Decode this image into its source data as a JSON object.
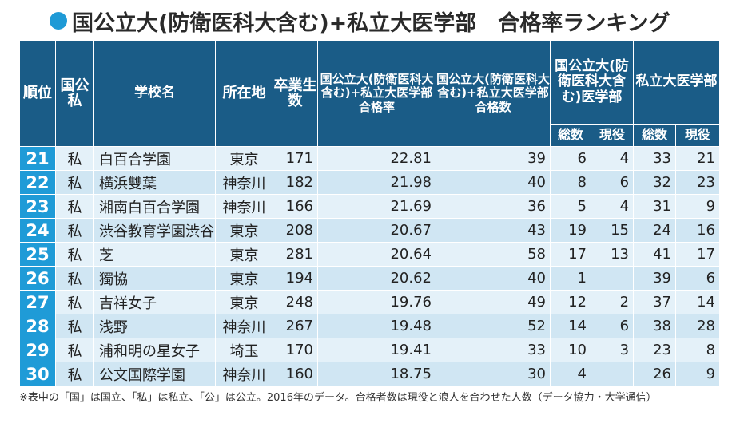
{
  "title": "国公立大(防衛医科大含む)+私立大医学部　合格率ランキング",
  "headers": {
    "rank": "順位",
    "type": "国公私",
    "school": "学校名",
    "location": "所在地",
    "graduates": "卒業生数",
    "rate": "国公立大(防衛医科大含む)+私立大医学部合格率",
    "passes": "国公立大(防衛医科大含む)+私立大医学部合格数",
    "national": "国公立大(防衛医科大含む)医学部",
    "private": "私立大医学部",
    "total": "総数",
    "current": "現役"
  },
  "rows": [
    {
      "rank": "21",
      "type": "私",
      "school": "白百合学園",
      "location": "東京",
      "graduates": "171",
      "rate": "22.81",
      "passes": "39",
      "nat_total": "6",
      "nat_current": "4",
      "pri_total": "33",
      "pri_current": "21"
    },
    {
      "rank": "22",
      "type": "私",
      "school": "横浜雙葉",
      "location": "神奈川",
      "graduates": "182",
      "rate": "21.98",
      "passes": "40",
      "nat_total": "8",
      "nat_current": "6",
      "pri_total": "32",
      "pri_current": "23"
    },
    {
      "rank": "23",
      "type": "私",
      "school": "湘南白百合学園",
      "location": "神奈川",
      "graduates": "166",
      "rate": "21.69",
      "passes": "36",
      "nat_total": "5",
      "nat_current": "4",
      "pri_total": "31",
      "pri_current": "9"
    },
    {
      "rank": "24",
      "type": "私",
      "school": "渋谷教育学園渋谷",
      "location": "東京",
      "graduates": "208",
      "rate": "20.67",
      "passes": "43",
      "nat_total": "19",
      "nat_current": "15",
      "pri_total": "24",
      "pri_current": "16"
    },
    {
      "rank": "25",
      "type": "私",
      "school": "芝",
      "location": "東京",
      "graduates": "281",
      "rate": "20.64",
      "passes": "58",
      "nat_total": "17",
      "nat_current": "13",
      "pri_total": "41",
      "pri_current": "17"
    },
    {
      "rank": "26",
      "type": "私",
      "school": "獨協",
      "location": "東京",
      "graduates": "194",
      "rate": "20.62",
      "passes": "40",
      "nat_total": "1",
      "nat_current": "",
      "pri_total": "39",
      "pri_current": "6"
    },
    {
      "rank": "27",
      "type": "私",
      "school": "吉祥女子",
      "location": "東京",
      "graduates": "248",
      "rate": "19.76",
      "passes": "49",
      "nat_total": "12",
      "nat_current": "2",
      "pri_total": "37",
      "pri_current": "14"
    },
    {
      "rank": "28",
      "type": "私",
      "school": "浅野",
      "location": "神奈川",
      "graduates": "267",
      "rate": "19.48",
      "passes": "52",
      "nat_total": "14",
      "nat_current": "6",
      "pri_total": "38",
      "pri_current": "28"
    },
    {
      "rank": "29",
      "type": "私",
      "school": "浦和明の星女子",
      "location": "埼玉",
      "graduates": "170",
      "rate": "19.41",
      "passes": "33",
      "nat_total": "10",
      "nat_current": "3",
      "pri_total": "23",
      "pri_current": "8"
    },
    {
      "rank": "30",
      "type": "私",
      "school": "公文国際学園",
      "location": "神奈川",
      "graduates": "160",
      "rate": "18.75",
      "passes": "30",
      "nat_total": "4",
      "nat_current": "",
      "pri_total": "26",
      "pri_current": "9"
    }
  ],
  "note": "※表中の「国」は国立、「私」は私立、「公」は公立。2016年のデータ。合格者数は現役と浪人を合わせた人数（データ協力・大学通信）",
  "colors": {
    "header_bg": "#1a5c87",
    "rank_bg": "#1f9bd7",
    "row_light": "#e4f1f9",
    "row_dark": "#d0e6f3",
    "title_dot": "#1e9ad6"
  }
}
